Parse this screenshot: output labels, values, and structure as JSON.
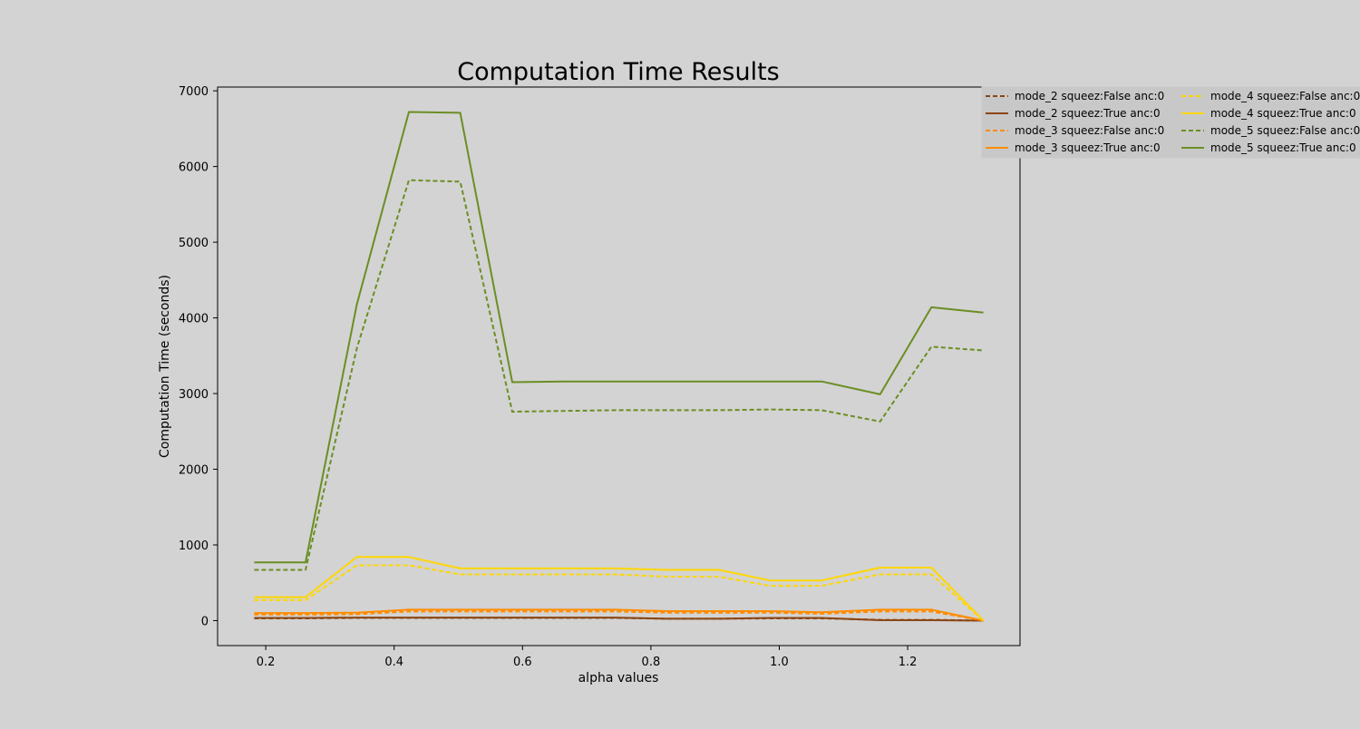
{
  "colors": {
    "background": "#d3d3d3",
    "mode_2": "#8b4513",
    "mode_3": "#ff8c00",
    "mode_4": "#ffd700",
    "mode_5": "#6b8e23"
  },
  "chart_data": {
    "type": "line",
    "title": "Computation Time Results",
    "xlabel": "alpha values",
    "ylabel": "Computation Time (seconds)",
    "xlim": [
      0.125,
      1.375
    ],
    "ylim": [
      -330,
      7050
    ],
    "xticks": [
      0.2,
      0.4,
      0.6,
      0.8,
      1.0,
      1.2
    ],
    "xtick_labels": [
      "0.2",
      "0.4",
      "0.6",
      "0.8",
      "1.0",
      "1.2"
    ],
    "yticks": [
      0,
      1000,
      2000,
      3000,
      4000,
      5000,
      6000,
      7000
    ],
    "ytick_labels": [
      "0",
      "1000",
      "2000",
      "3000",
      "4000",
      "5000",
      "6000",
      "7000"
    ],
    "legend_position": "top-right (outside plot)",
    "grid": false,
    "x": [
      0.182,
      0.262,
      0.342,
      0.423,
      0.503,
      0.584,
      0.664,
      0.744,
      0.826,
      0.906,
      0.986,
      1.066,
      1.157,
      1.237,
      1.318
    ],
    "series": [
      {
        "name": "mode_2 squeez:False anc:0",
        "color": "#8b4513",
        "style": "dashed",
        "values": [
          30,
          30,
          35,
          35,
          35,
          35,
          35,
          35,
          25,
          25,
          30,
          30,
          10,
          10,
          0
        ]
      },
      {
        "name": "mode_2 squeez:True anc:0",
        "color": "#8b4513",
        "style": "solid",
        "values": [
          35,
          35,
          40,
          40,
          40,
          40,
          40,
          40,
          25,
          25,
          35,
          35,
          5,
          5,
          0
        ]
      },
      {
        "name": "mode_3 squeez:False anc:0",
        "color": "#ff8c00",
        "style": "dashed",
        "values": [
          80,
          80,
          85,
          120,
          120,
          120,
          120,
          120,
          105,
          105,
          105,
          90,
          120,
          120,
          0
        ]
      },
      {
        "name": "mode_3 squeez:True anc:0",
        "color": "#ff8c00",
        "style": "solid",
        "values": [
          100,
          100,
          105,
          145,
          145,
          145,
          145,
          145,
          125,
          125,
          125,
          110,
          145,
          145,
          0
        ]
      },
      {
        "name": "mode_4 squeez:False anc:0",
        "color": "#ffd700",
        "style": "dashed",
        "values": [
          270,
          270,
          730,
          730,
          610,
          610,
          610,
          610,
          580,
          580,
          460,
          460,
          610,
          610,
          0
        ]
      },
      {
        "name": "mode_4 squeez:True anc:0",
        "color": "#ffd700",
        "style": "solid",
        "values": [
          310,
          310,
          840,
          840,
          690,
          690,
          690,
          690,
          670,
          670,
          530,
          530,
          700,
          700,
          0
        ]
      },
      {
        "name": "mode_5 squeez:False anc:0",
        "color": "#6b8e23",
        "style": "dashed",
        "values": [
          670,
          670,
          3600,
          5820,
          5800,
          2760,
          2770,
          2780,
          2780,
          2780,
          2790,
          2780,
          2630,
          3620,
          3570
        ]
      },
      {
        "name": "mode_5 squeez:True anc:0",
        "color": "#6b8e23",
        "style": "solid",
        "values": [
          770,
          770,
          4180,
          6720,
          6710,
          3150,
          3160,
          3160,
          3160,
          3160,
          3160,
          3160,
          2990,
          4140,
          4070
        ]
      }
    ]
  }
}
